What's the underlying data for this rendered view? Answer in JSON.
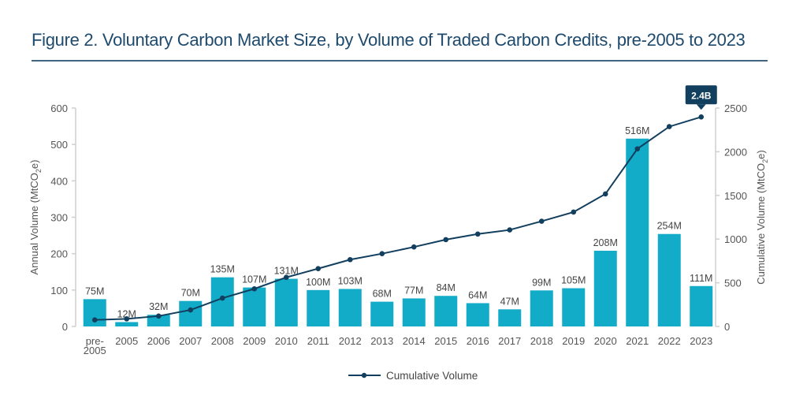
{
  "chart_data": {
    "type": "bar",
    "title": "Figure 2. Voluntary Carbon Market Size, by Volume of Traded Carbon Credits, pre-2005 to 2023",
    "categories": [
      "pre-2005",
      "2005",
      "2006",
      "2007",
      "2008",
      "2009",
      "2010",
      "2011",
      "2012",
      "2013",
      "2014",
      "2015",
      "2016",
      "2017",
      "2018",
      "2019",
      "2020",
      "2021",
      "2022",
      "2023"
    ],
    "category_lines": [
      [
        "pre-",
        "2005"
      ],
      [
        "2005"
      ],
      [
        "2006"
      ],
      [
        "2007"
      ],
      [
        "2008"
      ],
      [
        "2009"
      ],
      [
        "2010"
      ],
      [
        "2011"
      ],
      [
        "2012"
      ],
      [
        "2013"
      ],
      [
        "2014"
      ],
      [
        "2015"
      ],
      [
        "2016"
      ],
      [
        "2017"
      ],
      [
        "2018"
      ],
      [
        "2019"
      ],
      [
        "2020"
      ],
      [
        "2021"
      ],
      [
        "2022"
      ],
      [
        "2023"
      ]
    ],
    "series": [
      {
        "name": "Annual Volume",
        "type": "bar",
        "axis": "left",
        "color": "#12abc8",
        "values": [
          75,
          12,
          32,
          70,
          135,
          107,
          131,
          100,
          103,
          68,
          77,
          84,
          64,
          47,
          99,
          105,
          208,
          516,
          254,
          111
        ],
        "labels": [
          "75M",
          "12M",
          "32M",
          "70M",
          "135M",
          "107M",
          "131M",
          "100M",
          "103M",
          "68M",
          "77M",
          "84M",
          "64M",
          "47M",
          "99M",
          "105M",
          "208M",
          "516M",
          "254M",
          "111M"
        ]
      },
      {
        "name": "Cumulative Volume",
        "type": "line",
        "axis": "right",
        "color": "#123f5e",
        "values": [
          75,
          87,
          119,
          189,
          324,
          431,
          562,
          662,
          765,
          833,
          910,
          994,
          1058,
          1105,
          1204,
          1309,
          1517,
          2033,
          2287,
          2398
        ]
      }
    ],
    "y_left": {
      "label_main": "Annual Volume (MtCO",
      "label_sub": "2",
      "label_end": "e)",
      "ylim": [
        0,
        600
      ],
      "ticks": [
        0,
        100,
        200,
        300,
        400,
        500,
        600
      ]
    },
    "y_right": {
      "label_main": "Cumulative Volume (MtCO",
      "label_sub": "2",
      "label_end": "e)",
      "ylim": [
        0,
        2500
      ],
      "ticks": [
        0,
        500,
        1000,
        1500,
        2000,
        2500
      ]
    },
    "annotation": {
      "text": "2.4B",
      "category": "2023",
      "series": "Cumulative Volume",
      "color": "#123f5e"
    },
    "legend": {
      "position": "bottom-center",
      "entries": [
        "Cumulative Volume"
      ]
    },
    "grid": false
  }
}
